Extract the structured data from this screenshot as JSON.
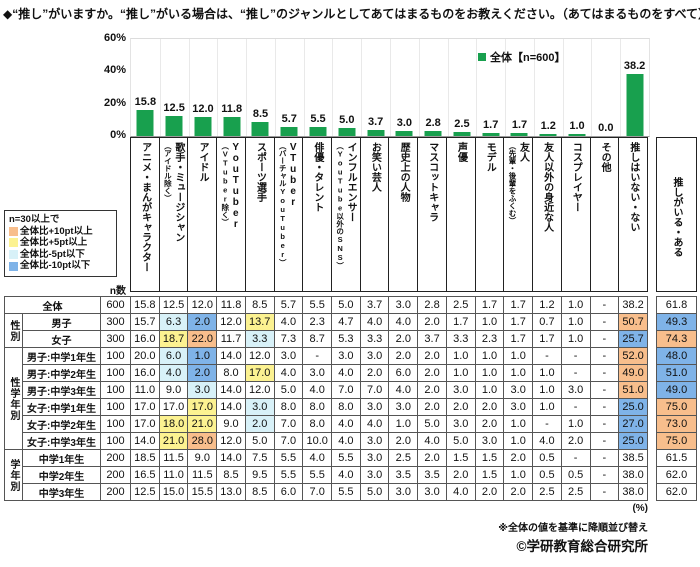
{
  "title": "◆“推し”がいますか。“推し”がいる場合は、“推し”のジャンルとしてあてはまるものをお教えください。（あてはまるものをすべて）",
  "colors": {
    "bar_green": "#18A04E",
    "plus10_orange": "#F8BE8C",
    "plus5_yellow": "#FCF291",
    "minus5_cyan": "#D8F1F8",
    "minus10_blue": "#7FB3E8"
  },
  "threshold_legend": {
    "intro": "n=30以上で",
    "items": [
      {
        "label": "全体比+10pt以上",
        "color_key": "plus10_orange"
      },
      {
        "label": "全体比+5pt以上",
        "color_key": "plus5_yellow"
      },
      {
        "label": "全体比-5pt以下",
        "color_key": "minus5_cyan"
      },
      {
        "label": "全体比-10pt以下",
        "color_key": "minus10_blue"
      }
    ]
  },
  "chart_data": {
    "type": "bar",
    "legend": "全体【n=600】",
    "ylim": [
      0,
      60
    ],
    "yticks": [
      0,
      20,
      40,
      60
    ],
    "ytick_suffix": "%",
    "grid": "vertical-only",
    "legend_position": "top-right",
    "categories": [
      {
        "main": "アニメ・まんがキャラクター",
        "sub": ""
      },
      {
        "main": "歌手・ミュージシャン",
        "sub": "（アイドル除く）"
      },
      {
        "main": "アイドル",
        "sub": ""
      },
      {
        "main": "YouTuber",
        "sub": "（VTuber除く）"
      },
      {
        "main": "スポーツ選手",
        "sub": ""
      },
      {
        "main": "VTuber",
        "sub": "（バーチャルYouTuber）"
      },
      {
        "main": "俳優・タレント",
        "sub": ""
      },
      {
        "main": "インフルエンサー",
        "sub": "（YouTube以外のSNS）"
      },
      {
        "main": "お笑い芸人",
        "sub": ""
      },
      {
        "main": "歴史上の人物",
        "sub": ""
      },
      {
        "main": "マスコットキャラ",
        "sub": ""
      },
      {
        "main": "声優",
        "sub": ""
      },
      {
        "main": "モデル",
        "sub": ""
      },
      {
        "main": "友人",
        "sub": "（先輩・後輩をふくむ）"
      },
      {
        "main": "友人以外の身近な人",
        "sub": ""
      },
      {
        "main": "コスプレイヤー",
        "sub": ""
      },
      {
        "main": "その他",
        "sub": ""
      },
      {
        "main": "推しはいない・ない",
        "sub": ""
      }
    ],
    "values": [
      15.8,
      12.5,
      12.0,
      11.8,
      8.5,
      5.7,
      5.5,
      5.0,
      3.7,
      3.0,
      2.8,
      2.5,
      1.7,
      1.7,
      1.2,
      1.0,
      0.0,
      38.2
    ],
    "extra_column_label": "推しがいる・ある"
  },
  "table": {
    "n_header": "n数",
    "percent_note": "(%)",
    "groups": [
      {
        "label": "",
        "rows": [
          {
            "label": "全体",
            "n": "600",
            "values": [
              "15.8",
              "12.5",
              "12.0",
              "11.8",
              "8.5",
              "5.7",
              "5.5",
              "5.0",
              "3.7",
              "3.0",
              "2.8",
              "2.5",
              "1.7",
              "1.7",
              "1.2",
              "1.0",
              "-",
              "38.2"
            ],
            "hl": [
              "",
              "",
              "",
              "",
              "",
              "",
              "",
              "",
              "",
              "",
              "",
              "",
              "",
              "",
              "",
              "",
              "",
              ""
            ],
            "aru": "61.8",
            "aru_hl": ""
          }
        ]
      },
      {
        "label": "性別",
        "rows": [
          {
            "label": "男子",
            "n": "300",
            "values": [
              "15.7",
              "6.3",
              "2.0",
              "12.0",
              "13.7",
              "4.0",
              "2.3",
              "4.7",
              "4.0",
              "4.0",
              "2.0",
              "1.7",
              "1.0",
              "1.7",
              "0.7",
              "1.0",
              "-",
              "50.7"
            ],
            "hl": [
              "",
              "c",
              "b",
              "",
              "y",
              "",
              "",
              "",
              "",
              "",
              "",
              "",
              "",
              "",
              "",
              "",
              "",
              "o"
            ],
            "aru": "49.3",
            "aru_hl": "b"
          },
          {
            "label": "女子",
            "n": "300",
            "values": [
              "16.0",
              "18.7",
              "22.0",
              "11.7",
              "3.3",
              "7.3",
              "8.7",
              "5.3",
              "3.3",
              "2.0",
              "3.7",
              "3.3",
              "2.3",
              "1.7",
              "1.7",
              "1.0",
              "-",
              "25.7"
            ],
            "hl": [
              "",
              "y",
              "o",
              "",
              "c",
              "",
              "",
              "",
              "",
              "",
              "",
              "",
              "",
              "",
              "",
              "",
              "",
              "b"
            ],
            "aru": "74.3",
            "aru_hl": "o"
          }
        ]
      },
      {
        "label": "性学年別",
        "rows": [
          {
            "label": "男子:中学1年生",
            "n": "100",
            "values": [
              "20.0",
              "6.0",
              "1.0",
              "14.0",
              "12.0",
              "3.0",
              "-",
              "3.0",
              "3.0",
              "2.0",
              "2.0",
              "1.0",
              "1.0",
              "1.0",
              "-",
              "-",
              "-",
              "52.0"
            ],
            "hl": [
              "",
              "c",
              "b",
              "",
              "",
              "",
              "",
              "",
              "",
              "",
              "",
              "",
              "",
              "",
              "",
              "",
              "",
              "o"
            ],
            "aru": "48.0",
            "aru_hl": "b"
          },
          {
            "label": "男子:中学2年生",
            "n": "100",
            "values": [
              "16.0",
              "4.0",
              "2.0",
              "8.0",
              "17.0",
              "4.0",
              "3.0",
              "4.0",
              "2.0",
              "6.0",
              "2.0",
              "1.0",
              "1.0",
              "1.0",
              "1.0",
              "-",
              "-",
              "49.0"
            ],
            "hl": [
              "",
              "c",
              "b",
              "",
              "y",
              "",
              "",
              "",
              "",
              "",
              "",
              "",
              "",
              "",
              "",
              "",
              "",
              "o"
            ],
            "aru": "51.0",
            "aru_hl": "b"
          },
          {
            "label": "男子:中学3年生",
            "n": "100",
            "values": [
              "11.0",
              "9.0",
              "3.0",
              "14.0",
              "12.0",
              "5.0",
              "4.0",
              "7.0",
              "7.0",
              "4.0",
              "2.0",
              "3.0",
              "1.0",
              "3.0",
              "1.0",
              "3.0",
              "-",
              "51.0"
            ],
            "hl": [
              "",
              "",
              "c",
              "",
              "",
              "",
              "",
              "",
              "",
              "",
              "",
              "",
              "",
              "",
              "",
              "",
              "",
              "o"
            ],
            "aru": "49.0",
            "aru_hl": "b"
          },
          {
            "label": "女子:中学1年生",
            "n": "100",
            "values": [
              "17.0",
              "17.0",
              "17.0",
              "14.0",
              "3.0",
              "8.0",
              "8.0",
              "8.0",
              "3.0",
              "3.0",
              "2.0",
              "2.0",
              "2.0",
              "3.0",
              "1.0",
              "-",
              "-",
              "25.0"
            ],
            "hl": [
              "",
              "",
              "y",
              "",
              "c",
              "",
              "",
              "",
              "",
              "",
              "",
              "",
              "",
              "",
              "",
              "",
              "",
              "b"
            ],
            "aru": "75.0",
            "aru_hl": "o"
          },
          {
            "label": "女子:中学2年生",
            "n": "100",
            "values": [
              "17.0",
              "18.0",
              "21.0",
              "9.0",
              "2.0",
              "7.0",
              "8.0",
              "4.0",
              "4.0",
              "1.0",
              "5.0",
              "3.0",
              "2.0",
              "1.0",
              "-",
              "1.0",
              "-",
              "27.0"
            ],
            "hl": [
              "",
              "y",
              "y",
              "",
              "c",
              "",
              "",
              "",
              "",
              "",
              "",
              "",
              "",
              "",
              "",
              "",
              "",
              "b"
            ],
            "aru": "73.0",
            "aru_hl": "o"
          },
          {
            "label": "女子:中学3年生",
            "n": "100",
            "values": [
              "14.0",
              "21.0",
              "28.0",
              "12.0",
              "5.0",
              "7.0",
              "10.0",
              "4.0",
              "3.0",
              "2.0",
              "4.0",
              "5.0",
              "3.0",
              "1.0",
              "4.0",
              "2.0",
              "-",
              "25.0"
            ],
            "hl": [
              "",
              "y",
              "o",
              "",
              "",
              "",
              "",
              "",
              "",
              "",
              "",
              "",
              "",
              "",
              "",
              "",
              "",
              "b"
            ],
            "aru": "75.0",
            "aru_hl": "o"
          }
        ]
      },
      {
        "label": "学年別",
        "rows": [
          {
            "label": "中学1年生",
            "n": "200",
            "values": [
              "18.5",
              "11.5",
              "9.0",
              "14.0",
              "7.5",
              "5.5",
              "4.0",
              "5.5",
              "3.0",
              "2.5",
              "2.0",
              "1.5",
              "1.5",
              "2.0",
              "0.5",
              "-",
              "-",
              "38.5"
            ],
            "hl": [
              "",
              "",
              "",
              "",
              "",
              "",
              "",
              "",
              "",
              "",
              "",
              "",
              "",
              "",
              "",
              "",
              "",
              ""
            ],
            "aru": "61.5",
            "aru_hl": ""
          },
          {
            "label": "中学2年生",
            "n": "200",
            "values": [
              "16.5",
              "11.0",
              "11.5",
              "8.5",
              "9.5",
              "5.5",
              "5.5",
              "4.0",
              "3.0",
              "3.5",
              "3.5",
              "2.0",
              "1.5",
              "1.0",
              "0.5",
              "0.5",
              "-",
              "38.0"
            ],
            "hl": [
              "",
              "",
              "",
              "",
              "",
              "",
              "",
              "",
              "",
              "",
              "",
              "",
              "",
              "",
              "",
              "",
              "",
              ""
            ],
            "aru": "62.0",
            "aru_hl": ""
          },
          {
            "label": "中学3年生",
            "n": "200",
            "values": [
              "12.5",
              "15.0",
              "15.5",
              "13.0",
              "8.5",
              "6.0",
              "7.0",
              "5.5",
              "5.0",
              "3.0",
              "3.0",
              "4.0",
              "2.0",
              "2.0",
              "2.5",
              "2.5",
              "-",
              "38.0"
            ],
            "hl": [
              "",
              "",
              "",
              "",
              "",
              "",
              "",
              "",
              "",
              "",
              "",
              "",
              "",
              "",
              "",
              "",
              "",
              ""
            ],
            "aru": "62.0",
            "aru_hl": ""
          }
        ]
      }
    ]
  },
  "footnote": "※全体の値を基準に降順並び替え",
  "copyright": "©学研教育総合研究所"
}
